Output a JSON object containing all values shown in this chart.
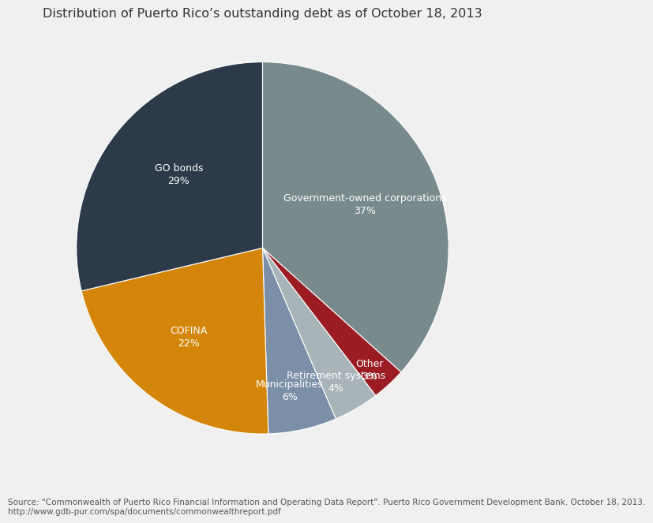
{
  "title": "Distribution of Puerto Rico’s outstanding debt as of October 18, 2013",
  "slices": [
    {
      "label": "Government-owned corporations\n37%",
      "value": 37,
      "color": "#788a8c"
    },
    {
      "label": "Other\n3%",
      "value": 3,
      "color": "#9b1c22"
    },
    {
      "label": "Retirement systems\n4%",
      "value": 4,
      "color": "#a8b4b8"
    },
    {
      "label": "Municipalities\n6%",
      "value": 6,
      "color": "#7b8fa8"
    },
    {
      "label": "COFINA\n22%",
      "value": 22,
      "color": "#d4860a"
    },
    {
      "label": "GO bonds\n29%",
      "value": 29,
      "color": "#2c3a4a"
    }
  ],
  "source_line1": "Source: “Commonwealth of Puerto Rico Financial Information and Operating Data Report”. Puerto Rico Government Development Bank. October 18, 2013.",
  "source_line2": "http://www.gdb-pur.com/spa/documents/commonwealthreport.pdf",
  "bg_color": "#f0f0f0",
  "title_fontsize": 11.5,
  "source_fontsize": 7.5,
  "label_positions": {
    "37": {
      "r": 0.6
    },
    "3": {
      "r": 0.87
    },
    "4": {
      "r": 0.82
    },
    "6": {
      "r": 0.78
    },
    "22": {
      "r": 0.62
    },
    "29": {
      "r": 0.6
    }
  }
}
